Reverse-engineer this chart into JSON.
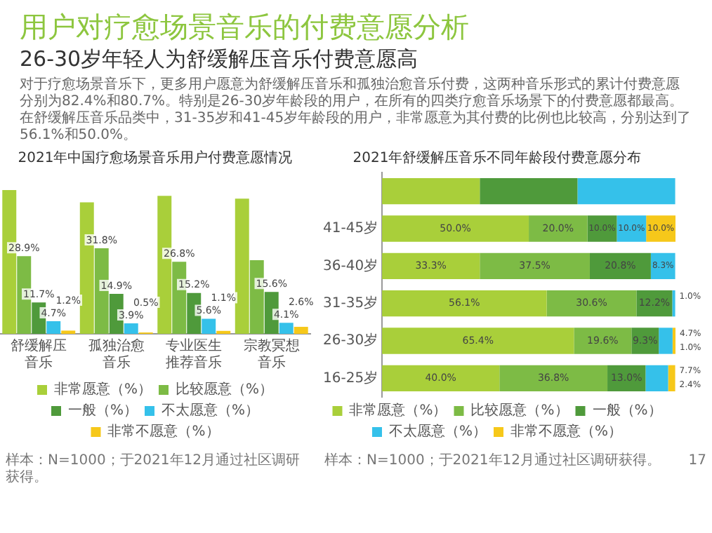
{
  "chart_data": [
    {
      "type": "other",
      "title": "用户对疗愈场景音乐的付费意愿分析",
      "subtitle": "26-30岁年轻人为舒缓解压音乐付费意愿高",
      "annotations": [
        "对于疗愈场景音乐下，更多用户愿意为舒缓解压音乐和孤独治愈音乐付费，这两种音乐形式的累计付费意愿分别为82.4%和80.7%。特别是26-30岁年龄段的用户，在所有的四类疗愈音乐场景下的付费意愿都最高。在舒缓解压音乐品类中，31-35岁和41-45岁年龄段的用户，非常愿意为其付费的比例也比较高，分别达到了56.1%和50.0%。"
      ]
    },
    {
      "type": "bar",
      "title": "2021年中国疗愈场景音乐用户付费意愿情况",
      "categories": [
        "舒缓解压音乐",
        "孤独治愈音乐",
        "专业医生推荐音乐",
        "宗教冥想音乐"
      ],
      "series": [
        {
          "name": "非常愿意（%）",
          "color": "#a9cf3a",
          "values": [
            53.5,
            48.9,
            51.3,
            50.3
          ],
          "value_labels": [
            null,
            null,
            null,
            null
          ]
        },
        {
          "name": "比较愿意（%）",
          "color": "#7dbb45",
          "values": [
            28.9,
            31.8,
            26.8,
            27.4
          ],
          "value_labels": [
            "28.9%",
            "31.8%",
            "26.8%",
            null
          ]
        },
        {
          "name": "一般（%）",
          "color": "#4f9a3b",
          "values": [
            11.7,
            14.9,
            15.2,
            15.6
          ],
          "value_labels": [
            "11.7%",
            "14.9%",
            "15.2%",
            "15.6%"
          ]
        },
        {
          "name": "不太愿意（%）",
          "color": "#35c1ea",
          "values": [
            4.7,
            3.9,
            5.6,
            4.1
          ],
          "value_labels": [
            "4.7%",
            "3.9%",
            "5.6%",
            "4.1%"
          ]
        },
        {
          "name": "非常不愿意（%）",
          "color": "#f6c81a",
          "values": [
            1.2,
            0.5,
            1.1,
            2.6
          ],
          "value_labels": [
            "1.2%",
            "0.5%",
            "1.1%",
            "2.6%"
          ]
        }
      ],
      "legend": "bottom",
      "grid": false,
      "tick_labels": "x",
      "annotations": [
        "样本：N=1000；于2021年12月通过社区调研获得。"
      ]
    },
    {
      "type": "bar",
      "orientation": "horizontal",
      "stacked": true,
      "title": "2021年舒缓解压音乐不同年龄段付费意愿分布",
      "categories": [
        null,
        "41-45岁",
        "36-40岁",
        "31-35岁",
        "26-30岁",
        "16-25岁"
      ],
      "series": [
        {
          "name": "非常愿意（%）",
          "color": "#a9cf3a",
          "values": [
            33.3,
            50.0,
            33.3,
            56.1,
            65.4,
            40.0
          ],
          "value_labels": [
            null,
            "50.0%",
            "33.3%",
            "56.1%",
            "65.4%",
            "40.0%"
          ]
        },
        {
          "name": "比较愿意（%）",
          "color": "#7dbb45",
          "values": [
            0,
            20.0,
            37.5,
            30.6,
            19.6,
            36.8
          ],
          "value_labels": [
            null,
            "20.0%",
            "37.5%",
            "30.6%",
            "19.6%",
            "36.8%"
          ]
        },
        {
          "name": "一般（%）",
          "color": "#4f9a3b",
          "values": [
            33.3,
            10.0,
            20.8,
            12.2,
            9.3,
            13.0
          ],
          "value_labels": [
            null,
            "10.0%",
            "20.8%",
            "12.2%",
            "9.3%",
            "13.0%"
          ]
        },
        {
          "name": "不太愿意（%）",
          "color": "#35c1ea",
          "values": [
            33.3,
            10.0,
            8.3,
            1.0,
            4.7,
            7.7
          ],
          "value_labels": [
            null,
            "10.0%",
            "8.3%",
            "1.0%",
            "4.7%",
            "7.7%"
          ]
        },
        {
          "name": "非常不愿意（%）",
          "color": "#f6c81a",
          "values": [
            0,
            10.0,
            0,
            0,
            1.0,
            2.4
          ],
          "value_labels": [
            null,
            "10.0%",
            null,
            null,
            "1.0%",
            "2.4%"
          ]
        }
      ],
      "legend": "bottom",
      "grid": false,
      "tick_labels": "y",
      "annotations": [
        "样本：N=1000；于2021年12月通过社区调研获得。",
        "17"
      ]
    }
  ]
}
